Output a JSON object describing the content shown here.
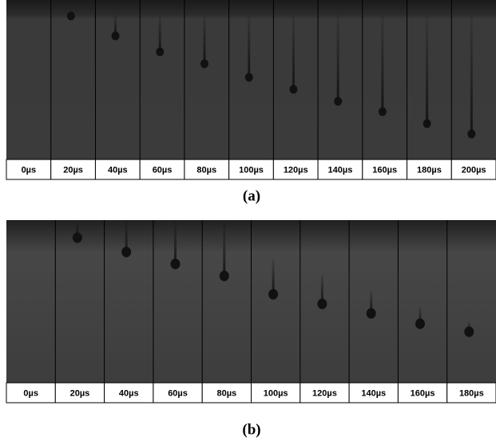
{
  "panel_a": {
    "labels": [
      "0µs",
      "20µs",
      "40µs",
      "60µs",
      "80µs",
      "100µs",
      "120µs",
      "140µs",
      "160µs",
      "180µs",
      "200µs"
    ],
    "caption": "(a)"
  },
  "panel_b": {
    "labels": [
      "0µs",
      "20µs",
      "40µs",
      "60µs",
      "80µs",
      "100µs",
      "120µs",
      "140µs",
      "160µs",
      "180µs"
    ],
    "caption": "(b)"
  }
}
